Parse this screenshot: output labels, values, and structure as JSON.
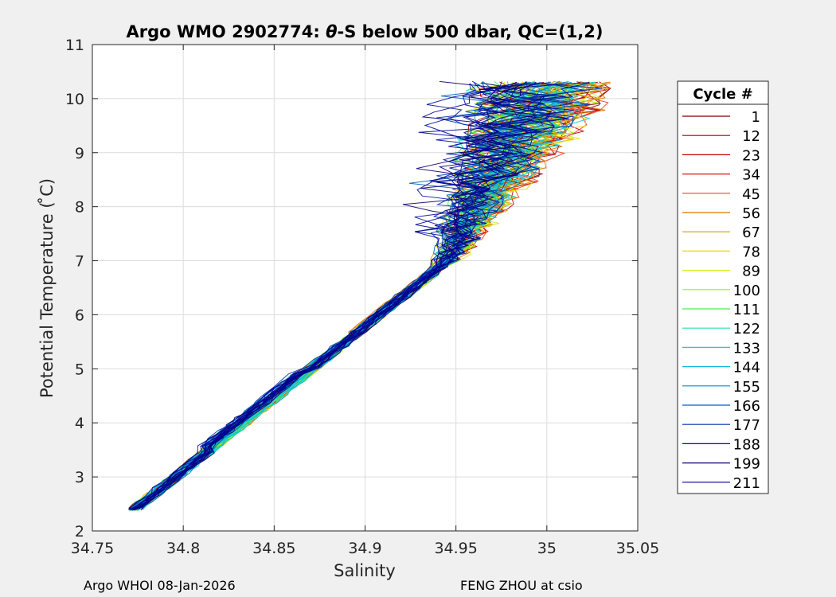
{
  "chart_data": {
    "type": "line",
    "title_prefix": "Argo WMO 2902774: ",
    "title_theta": "θ",
    "title_suffix": "-S below 500 dbar,  QC=(1,2)",
    "xlabel": "Salinity",
    "ylabel": "Potential Temperature ( ̊C)",
    "xlim": [
      34.75,
      35.05
    ],
    "ylim": [
      2,
      11
    ],
    "x_ticks": [
      "34.75",
      "34.8",
      "34.85",
      "34.9",
      "34.95",
      "35",
      "35.05"
    ],
    "y_ticks": [
      "2",
      "3",
      "4",
      "5",
      "6",
      "7",
      "8",
      "9",
      "10",
      "11"
    ],
    "grid": true,
    "legend_title": "Cycle #",
    "legend_position": "right",
    "series": [
      {
        "name": "1",
        "color": "#800000"
      },
      {
        "name": "12",
        "color": "#a00000"
      },
      {
        "name": "23",
        "color": "#c00000"
      },
      {
        "name": "34",
        "color": "#e01010"
      },
      {
        "name": "45",
        "color": "#f04020"
      },
      {
        "name": "56",
        "color": "#e07000"
      },
      {
        "name": "67",
        "color": "#d0a000"
      },
      {
        "name": "78",
        "color": "#e8d800"
      },
      {
        "name": "89",
        "color": "#d8e820"
      },
      {
        "name": "100",
        "color": "#a0f000"
      },
      {
        "name": "111",
        "color": "#50e850"
      },
      {
        "name": "122",
        "color": "#20e0a0"
      },
      {
        "name": "133",
        "color": "#10d0d0"
      },
      {
        "name": "144",
        "color": "#10b8e0"
      },
      {
        "name": "155",
        "color": "#0090d0"
      },
      {
        "name": "166",
        "color": "#0060c0"
      },
      {
        "name": "177",
        "color": "#0030b0"
      },
      {
        "name": "188",
        "color": "#0010a0"
      },
      {
        "name": "199",
        "color": "#100070"
      },
      {
        "name": "211",
        "color": "#000090"
      }
    ]
  },
  "footer": {
    "left": "Argo WHOI 08-Jan-2026",
    "right": "FENG ZHOU at csio"
  }
}
